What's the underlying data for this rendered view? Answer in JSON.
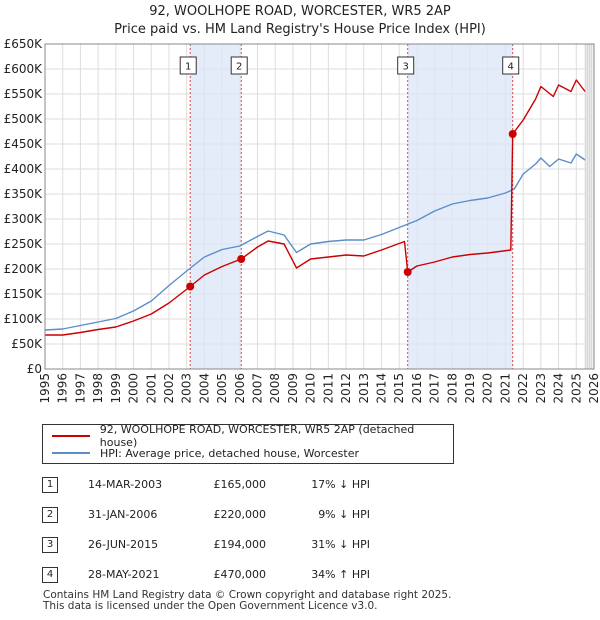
{
  "chart_data": {
    "type": "line",
    "title": "92, WOOLHOPE ROAD, WORCESTER, WR5 2AP",
    "subtitle": "Price paid vs. HM Land Registry's House Price Index (HPI)",
    "xlim": [
      1995,
      2026
    ],
    "ylim": [
      0,
      650000
    ],
    "y_ticks": [
      0,
      50000,
      100000,
      150000,
      200000,
      250000,
      300000,
      350000,
      400000,
      450000,
      500000,
      550000,
      600000,
      650000
    ],
    "y_tick_labels": [
      "£0",
      "£50K",
      "£100K",
      "£150K",
      "£200K",
      "£250K",
      "£300K",
      "£350K",
      "£400K",
      "£450K",
      "£500K",
      "£550K",
      "£600K",
      "£650K"
    ],
    "x_ticks": [
      1995,
      1996,
      1997,
      1998,
      1999,
      2000,
      2001,
      2002,
      2003,
      2004,
      2005,
      2006,
      2007,
      2008,
      2009,
      2010,
      2011,
      2012,
      2013,
      2014,
      2015,
      2016,
      2017,
      2018,
      2019,
      2020,
      2021,
      2022,
      2023,
      2024,
      2025,
      2026
    ],
    "x_tick_labels": [
      "1995",
      "1996",
      "1997",
      "1998",
      "1999",
      "2000",
      "2001",
      "2002",
      "2003",
      "2004",
      "2005",
      "2006",
      "2007",
      "2008",
      "2009",
      "2010",
      "2011",
      "2012",
      "2013",
      "2014",
      "2015",
      "2016",
      "2017",
      "2018",
      "2019",
      "2020",
      "2021",
      "2022",
      "2023",
      "2024",
      "2025",
      "2026"
    ],
    "shaded_ranges": [
      [
        2003.2,
        2006.08
      ],
      [
        2015.48,
        2021.41
      ]
    ],
    "future_start": 2025.5,
    "series": [
      {
        "name": "92, WOOLHOPE ROAD, WORCESTER, WR5 2AP (detached house)",
        "color": "#cc0000",
        "x": [
          1995,
          1996,
          1997,
          1998,
          1999,
          2000,
          2001,
          2002,
          2003.2,
          2004,
          2005,
          2006.08,
          2007,
          2007.6,
          2008.5,
          2009.2,
          2010,
          2011,
          2012,
          2013,
          2014,
          2015.3,
          2015.48,
          2016,
          2017,
          2018,
          2019,
          2020,
          2021.3,
          2021.41,
          2022,
          2022.7,
          2023,
          2023.7,
          2024,
          2024.7,
          2025,
          2025.5
        ],
        "values": [
          68000,
          68000,
          73000,
          79000,
          84000,
          96000,
          110000,
          132000,
          165000,
          188000,
          205000,
          220000,
          244000,
          256000,
          250000,
          202000,
          220000,
          224000,
          228000,
          226000,
          238000,
          255000,
          194000,
          206000,
          214000,
          224000,
          229000,
          232000,
          238000,
          470000,
          498000,
          540000,
          565000,
          545000,
          568000,
          555000,
          578000,
          555000
        ]
      },
      {
        "name": "HPI: Average price, detached house, Worcester",
        "color": "#5b8ec9",
        "x": [
          1995,
          1996,
          1997,
          1998,
          1999,
          2000,
          2001,
          2002,
          2003,
          2004,
          2005,
          2006,
          2007,
          2007.6,
          2008.5,
          2009.2,
          2010,
          2011,
          2012,
          2013,
          2014,
          2015,
          2016,
          2017,
          2018,
          2019,
          2020,
          2021,
          2021.5,
          2022,
          2022.7,
          2023,
          2023.5,
          2024,
          2024.7,
          2025,
          2025.5
        ],
        "values": [
          78000,
          80000,
          87000,
          94000,
          101000,
          116000,
          136000,
          167000,
          196000,
          224000,
          239000,
          246000,
          265000,
          276000,
          268000,
          233000,
          250000,
          255000,
          258000,
          258000,
          269000,
          283000,
          297000,
          316000,
          330000,
          337000,
          342000,
          352000,
          360000,
          390000,
          410000,
          422000,
          405000,
          420000,
          412000,
          430000,
          418000
        ]
      }
    ],
    "markers": [
      {
        "label": "1",
        "x": 2003.2,
        "y": 165000
      },
      {
        "label": "2",
        "x": 2006.08,
        "y": 220000
      },
      {
        "label": "3",
        "x": 2015.48,
        "y": 194000
      },
      {
        "label": "4",
        "x": 2021.41,
        "y": 470000
      }
    ]
  },
  "legend": {
    "price_label": "92, WOOLHOPE ROAD, WORCESTER, WR5 2AP (detached house)",
    "hpi_label": "HPI: Average price, detached house, Worcester",
    "price_color": "#cc0000",
    "hpi_color": "#5b8ec9"
  },
  "transactions": [
    {
      "num": "1",
      "date": "14-MAR-2003",
      "price": "£165,000",
      "hpi": "17% ↓ HPI"
    },
    {
      "num": "2",
      "date": "31-JAN-2006",
      "price": "£220,000",
      "hpi": "9% ↓ HPI"
    },
    {
      "num": "3",
      "date": "26-JUN-2015",
      "price": "£194,000",
      "hpi": "31% ↓ HPI"
    },
    {
      "num": "4",
      "date": "28-MAY-2021",
      "price": "£470,000",
      "hpi": "34% ↑ HPI"
    }
  ],
  "footer": {
    "line1": "Contains HM Land Registry data © Crown copyright and database right 2025.",
    "line2": "This data is licensed under the Open Government Licence v3.0."
  }
}
